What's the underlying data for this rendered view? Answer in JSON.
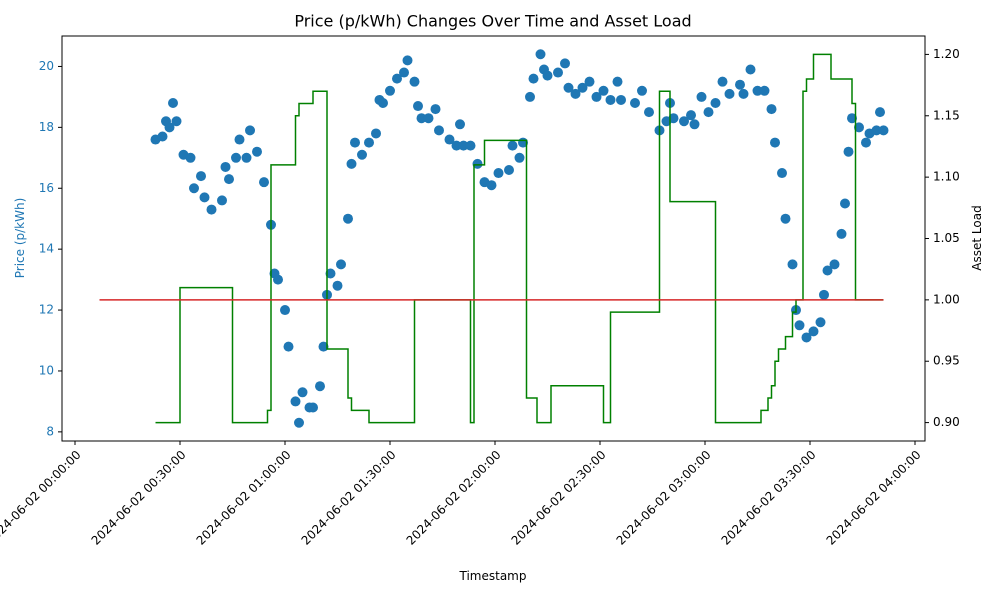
{
  "chart_data": {
    "type": "combo",
    "title": "Price (p/kWh) Changes Over Time and Asset Load",
    "xlabel": "Timestamp",
    "ylabel": "Price (p/kWh)",
    "y2label": "Asset Load",
    "ylabel_color": "#1f77b4",
    "xlim": [
      "2024-06-02 00:00:00",
      "2024-06-02 04:00:00"
    ],
    "xticks": [
      "2024-06-02 00:00:00",
      "2024-06-02 00:30:00",
      "2024-06-02 01:00:00",
      "2024-06-02 01:30:00",
      "2024-06-02 02:00:00",
      "2024-06-02 02:30:00",
      "2024-06-02 03:00:00",
      "2024-06-02 03:30:00",
      "2024-06-02 04:00:00"
    ],
    "ylim": [
      7.7,
      21.0
    ],
    "yticks": [
      8,
      10,
      12,
      14,
      16,
      18,
      20
    ],
    "y2lim": [
      0.885,
      1.215
    ],
    "y2ticks": [
      {
        "value": 0.9,
        "label": "0.90"
      },
      0.95,
      {
        "value": 1.0,
        "label": "1.00"
      },
      1.05,
      {
        "value": 1.1,
        "label": "1.10"
      },
      1.15,
      {
        "value": 1.2,
        "label": "1.20"
      }
    ],
    "series": [
      {
        "type": "scatter",
        "color": "#1f77b4",
        "x": [
          "2024-06-02 00:23:00",
          "2024-06-02 00:25:00",
          "2024-06-02 00:26:00",
          "2024-06-02 00:27:00",
          "2024-06-02 00:28:00",
          "2024-06-02 00:29:00",
          "2024-06-02 00:31:00",
          "2024-06-02 00:33:00",
          "2024-06-02 00:34:00",
          "2024-06-02 00:36:00",
          "2024-06-02 00:37:00",
          "2024-06-02 00:39:00",
          "2024-06-02 00:42:00",
          "2024-06-02 00:43:00",
          "2024-06-02 00:44:00",
          "2024-06-02 00:46:00",
          "2024-06-02 00:47:00",
          "2024-06-02 00:49:00",
          "2024-06-02 00:50:00",
          "2024-06-02 00:52:00",
          "2024-06-02 00:54:00",
          "2024-06-02 00:56:00",
          "2024-06-02 00:57:00",
          "2024-06-02 00:58:00",
          "2024-06-02 01:00:00",
          "2024-06-02 01:01:00",
          "2024-06-02 01:03:00",
          "2024-06-02 01:04:00",
          "2024-06-02 01:05:00",
          "2024-06-02 01:07:00",
          "2024-06-02 01:08:00",
          "2024-06-02 01:10:00",
          "2024-06-02 01:11:00",
          "2024-06-02 01:12:00",
          "2024-06-02 01:13:00",
          "2024-06-02 01:15:00",
          "2024-06-02 01:16:00",
          "2024-06-02 01:18:00",
          "2024-06-02 01:19:00",
          "2024-06-02 01:20:00",
          "2024-06-02 01:22:00",
          "2024-06-02 01:24:00",
          "2024-06-02 01:26:00",
          "2024-06-02 01:27:00",
          "2024-06-02 01:28:00",
          "2024-06-02 01:30:00",
          "2024-06-02 01:32:00",
          "2024-06-02 01:34:00",
          "2024-06-02 01:35:00",
          "2024-06-02 01:37:00",
          "2024-06-02 01:38:00",
          "2024-06-02 01:39:00",
          "2024-06-02 01:41:00",
          "2024-06-02 01:43:00",
          "2024-06-02 01:44:00",
          "2024-06-02 01:47:00",
          "2024-06-02 01:49:00",
          "2024-06-02 01:50:00",
          "2024-06-02 01:51:00",
          "2024-06-02 01:53:00",
          "2024-06-02 01:55:00",
          "2024-06-02 01:57:00",
          "2024-06-02 01:59:00",
          "2024-06-02 02:01:00",
          "2024-06-02 02:04:00",
          "2024-06-02 02:05:00",
          "2024-06-02 02:07:00",
          "2024-06-02 02:08:00",
          "2024-06-02 02:10:00",
          "2024-06-02 02:11:00",
          "2024-06-02 02:13:00",
          "2024-06-02 02:14:00",
          "2024-06-02 02:15:00",
          "2024-06-02 02:18:00",
          "2024-06-02 02:20:00",
          "2024-06-02 02:21:00",
          "2024-06-02 02:23:00",
          "2024-06-02 02:25:00",
          "2024-06-02 02:27:00",
          "2024-06-02 02:29:00",
          "2024-06-02 02:31:00",
          "2024-06-02 02:33:00",
          "2024-06-02 02:35:00",
          "2024-06-02 02:36:00",
          "2024-06-02 02:40:00",
          "2024-06-02 02:42:00",
          "2024-06-02 02:44:00",
          "2024-06-02 02:47:00",
          "2024-06-02 02:49:00",
          "2024-06-02 02:50:00",
          "2024-06-02 02:51:00",
          "2024-06-02 02:54:00",
          "2024-06-02 02:56:00",
          "2024-06-02 02:57:00",
          "2024-06-02 02:59:00",
          "2024-06-02 03:01:00",
          "2024-06-02 03:03:00",
          "2024-06-02 03:05:00",
          "2024-06-02 03:07:00",
          "2024-06-02 03:10:00",
          "2024-06-02 03:11:00",
          "2024-06-02 03:13:00",
          "2024-06-02 03:15:00",
          "2024-06-02 03:17:00",
          "2024-06-02 03:19:00",
          "2024-06-02 03:20:00",
          "2024-06-02 03:22:00",
          "2024-06-02 03:23:00",
          "2024-06-02 03:25:00",
          "2024-06-02 03:26:00",
          "2024-06-02 03:27:00",
          "2024-06-02 03:29:00",
          "2024-06-02 03:31:00",
          "2024-06-02 03:33:00",
          "2024-06-02 03:34:00",
          "2024-06-02 03:35:00",
          "2024-06-02 03:37:00",
          "2024-06-02 03:39:00",
          "2024-06-02 03:40:00",
          "2024-06-02 03:41:00",
          "2024-06-02 03:42:00",
          "2024-06-02 03:44:00",
          "2024-06-02 03:46:00",
          "2024-06-02 03:47:00",
          "2024-06-02 03:49:00",
          "2024-06-02 03:50:00",
          "2024-06-02 03:51:00"
        ],
        "values": [
          17.6,
          17.7,
          18.2,
          18.0,
          18.8,
          18.2,
          17.1,
          17.0,
          16.0,
          16.4,
          15.7,
          15.3,
          15.6,
          16.7,
          16.3,
          17.0,
          17.6,
          17.0,
          17.9,
          17.2,
          16.2,
          14.8,
          13.2,
          13.0,
          12.0,
          10.8,
          9.0,
          8.3,
          9.3,
          8.8,
          8.8,
          9.5,
          10.8,
          12.5,
          13.2,
          12.8,
          13.5,
          15.0,
          16.8,
          17.5,
          17.1,
          17.5,
          17.8,
          18.9,
          18.8,
          19.2,
          19.6,
          19.8,
          20.2,
          19.5,
          18.7,
          18.3,
          18.3,
          18.6,
          17.9,
          17.6,
          17.4,
          18.1,
          17.4,
          17.4,
          16.8,
          16.2,
          16.1,
          16.5,
          16.6,
          17.4,
          17.0,
          17.5,
          19.0,
          19.6,
          20.4,
          19.9,
          19.7,
          19.8,
          20.1,
          19.3,
          19.1,
          19.3,
          19.5,
          19.0,
          19.2,
          18.9,
          19.5,
          18.9,
          18.8,
          19.2,
          18.5,
          17.9,
          18.2,
          18.8,
          18.3,
          18.2,
          18.4,
          18.1,
          19.0,
          18.5,
          18.8,
          19.5,
          19.1,
          19.4,
          19.1,
          19.9,
          19.2,
          19.2,
          18.6,
          17.5,
          16.5,
          15.0,
          13.5,
          12.0,
          11.5,
          11.1,
          11.3,
          11.6,
          12.5,
          13.3,
          13.5,
          14.5,
          15.5,
          17.2,
          18.3,
          18.0,
          17.5,
          17.8,
          17.9,
          18.5,
          17.9
        ]
      },
      {
        "type": "step",
        "axis": "y2",
        "color": "#008000",
        "x": [
          "2024-06-02 00:23:00",
          "2024-06-02 00:30:00",
          "2024-06-02 00:45:00",
          "2024-06-02 00:55:00",
          "2024-06-02 00:56:00",
          "2024-06-02 01:03:00",
          "2024-06-02 01:04:00",
          "2024-06-02 01:08:00",
          "2024-06-02 01:12:00",
          "2024-06-02 01:18:00",
          "2024-06-02 01:19:00",
          "2024-06-02 01:24:00",
          "2024-06-02 01:37:00",
          "2024-06-02 01:53:00",
          "2024-06-02 01:54:00",
          "2024-06-02 01:57:00",
          "2024-06-02 02:09:00",
          "2024-06-02 02:12:00",
          "2024-06-02 02:16:00",
          "2024-06-02 02:31:00",
          "2024-06-02 02:33:00",
          "2024-06-02 02:47:00",
          "2024-06-02 02:50:00",
          "2024-06-02 03:03:00",
          "2024-06-02 03:16:00",
          "2024-06-02 03:18:00",
          "2024-06-02 03:19:00",
          "2024-06-02 03:20:00",
          "2024-06-02 03:21:00",
          "2024-06-02 03:23:00",
          "2024-06-02 03:25:00",
          "2024-06-02 03:26:00",
          "2024-06-02 03:28:00",
          "2024-06-02 03:29:00",
          "2024-06-02 03:31:00",
          "2024-06-02 03:36:00",
          "2024-06-02 03:42:00",
          "2024-06-02 03:43:00",
          "2024-06-02 03:51:00"
        ],
        "values": [
          0.9,
          1.01,
          0.9,
          0.91,
          1.11,
          1.15,
          1.16,
          1.17,
          0.96,
          0.92,
          0.91,
          0.9,
          1.0,
          0.9,
          1.11,
          1.13,
          0.92,
          0.9,
          0.93,
          0.9,
          0.99,
          1.17,
          1.08,
          0.9,
          0.91,
          0.92,
          0.93,
          0.95,
          0.96,
          0.97,
          0.99,
          1.0,
          1.17,
          1.18,
          1.2,
          1.18,
          1.16,
          1.0,
          1.0
        ]
      },
      {
        "type": "line",
        "axis": "y2",
        "color": "#d62728",
        "x": [
          "2024-06-02 00:07:00",
          "2024-06-02 03:51:00"
        ],
        "values": [
          1.0,
          1.0
        ]
      }
    ]
  }
}
